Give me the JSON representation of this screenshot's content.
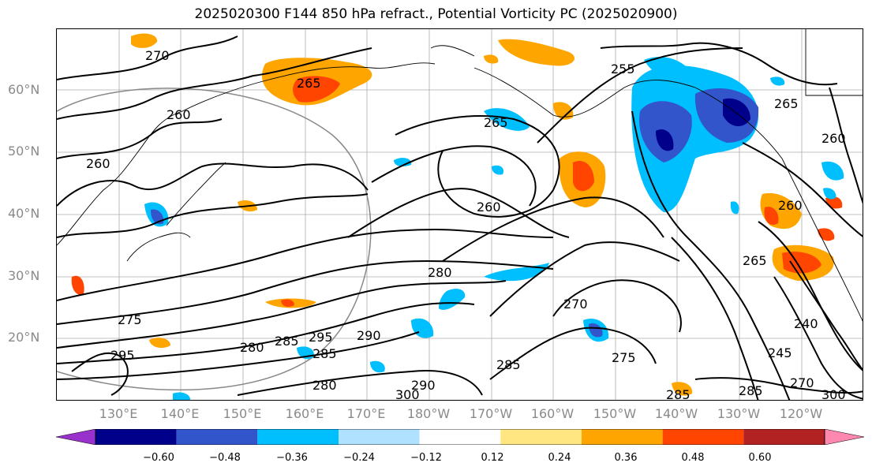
{
  "title": "2025020300 F144 850 hPa refract., Potential Vorticity PC (2025020900)",
  "latitude_labels": [
    "60°N",
    "50°N",
    "40°N",
    "30°N",
    "20°N"
  ],
  "longitude_labels": [
    "130°E",
    "140°E",
    "150°E",
    "160°E",
    "170°E",
    "180°W",
    "170°W",
    "160°W",
    "150°W",
    "140°W",
    "130°W",
    "120°W"
  ],
  "colorbar": {
    "colors": [
      "#9932cc",
      "#00008b",
      "#3355cc",
      "#00bfff",
      "#b0e2ff",
      "#ffffff",
      "#ffe680",
      "#ffa500",
      "#ff4500",
      "#b22222",
      "#ff88b0"
    ],
    "ticks": [
      "−0.60",
      "−0.48",
      "−0.36",
      "−0.24",
      "−0.12",
      "0.12",
      "0.24",
      "0.36",
      "0.48",
      "0.60"
    ]
  },
  "contour_labels": [
    "270",
    "265",
    "260",
    "255",
    "265",
    "260",
    "260",
    "260",
    "265",
    "280",
    "275",
    "295",
    "280",
    "285",
    "295",
    "290",
    "285",
    "270",
    "275",
    "285",
    "300",
    "290",
    "280",
    "285",
    "270",
    "265",
    "260",
    "240",
    "245",
    "300",
    "285"
  ]
}
